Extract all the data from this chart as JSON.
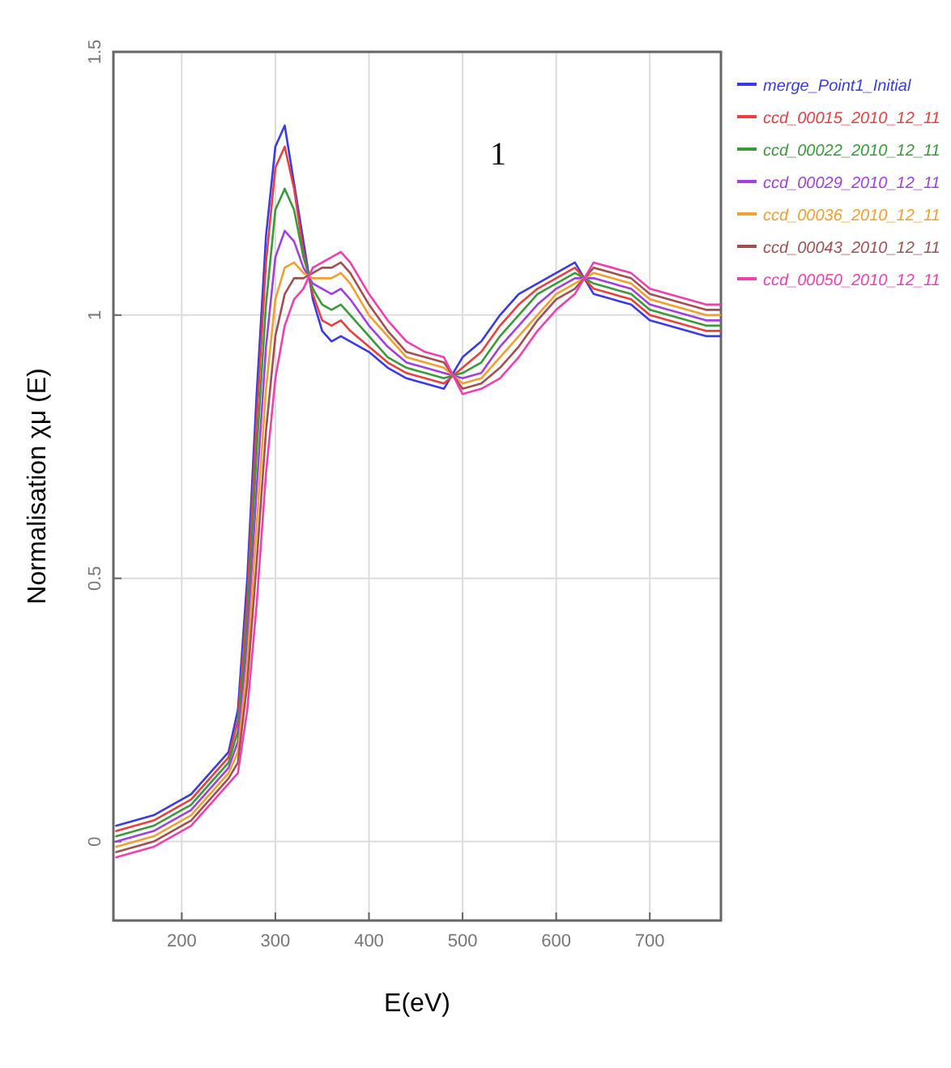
{
  "chart_data": {
    "type": "line",
    "xlabel": "E(eV)",
    "ylabel": "Normalisation χμ (E)",
    "annotations": [
      "1"
    ],
    "xlim": [
      127,
      776
    ],
    "ylim": [
      -0.15,
      1.5
    ],
    "xticks": [
      200,
      300,
      400,
      500,
      600,
      700
    ],
    "yticks": [
      0,
      0.5,
      1,
      1.5
    ],
    "grid": true,
    "legend": "right",
    "marker": "none",
    "line_style": "solid",
    "x": [
      130,
      150,
      170,
      190,
      210,
      230,
      250,
      260,
      270,
      280,
      290,
      300,
      310,
      320,
      330,
      340,
      350,
      360,
      370,
      380,
      400,
      420,
      440,
      460,
      480,
      500,
      520,
      540,
      560,
      580,
      600,
      620,
      640,
      660,
      680,
      700,
      720,
      740,
      760,
      775
    ],
    "series": [
      {
        "name": "merge_Point1_Initial",
        "color": "#3a3ae8",
        "values": [
          0.03,
          0.04,
          0.05,
          0.07,
          0.09,
          0.13,
          0.17,
          0.25,
          0.5,
          0.85,
          1.15,
          1.32,
          1.36,
          1.25,
          1.14,
          1.03,
          0.97,
          0.95,
          0.96,
          0.95,
          0.93,
          0.9,
          0.88,
          0.87,
          0.86,
          0.92,
          0.95,
          1.0,
          1.04,
          1.06,
          1.08,
          1.1,
          1.04,
          1.03,
          1.02,
          0.99,
          0.98,
          0.97,
          0.96,
          0.96
        ]
      },
      {
        "name": "ccd_00015_2010_12_11",
        "color": "#e84040",
        "values": [
          0.02,
          0.03,
          0.04,
          0.06,
          0.08,
          0.12,
          0.16,
          0.23,
          0.46,
          0.8,
          1.1,
          1.28,
          1.32,
          1.24,
          1.12,
          1.04,
          0.99,
          0.98,
          0.99,
          0.97,
          0.94,
          0.91,
          0.89,
          0.88,
          0.87,
          0.9,
          0.93,
          0.98,
          1.02,
          1.05,
          1.07,
          1.09,
          1.05,
          1.04,
          1.03,
          1.0,
          0.99,
          0.98,
          0.97,
          0.97
        ]
      },
      {
        "name": "ccd_00022_2010_12_11",
        "color": "#3a9a3a",
        "values": [
          0.01,
          0.02,
          0.03,
          0.05,
          0.07,
          0.11,
          0.15,
          0.21,
          0.42,
          0.74,
          1.02,
          1.2,
          1.24,
          1.2,
          1.11,
          1.05,
          1.02,
          1.01,
          1.02,
          1.0,
          0.96,
          0.92,
          0.9,
          0.89,
          0.88,
          0.89,
          0.91,
          0.96,
          1.0,
          1.04,
          1.06,
          1.08,
          1.06,
          1.05,
          1.04,
          1.01,
          1.0,
          0.99,
          0.98,
          0.98
        ]
      },
      {
        "name": "ccd_00029_2010_12_11",
        "color": "#a040e0",
        "values": [
          0,
          0.01,
          0.02,
          0.04,
          0.06,
          0.1,
          0.14,
          0.19,
          0.38,
          0.67,
          0.94,
          1.11,
          1.16,
          1.14,
          1.09,
          1.06,
          1.05,
          1.04,
          1.05,
          1.03,
          0.98,
          0.94,
          0.91,
          0.9,
          0.89,
          0.88,
          0.89,
          0.94,
          0.98,
          1.02,
          1.05,
          1.07,
          1.07,
          1.06,
          1.05,
          1.02,
          1.01,
          1.0,
          0.99,
          0.99
        ]
      },
      {
        "name": "ccd_00036_2010_12_11",
        "color": "#f0a030",
        "values": [
          -0.01,
          0,
          0.01,
          0.03,
          0.05,
          0.09,
          0.13,
          0.17,
          0.34,
          0.6,
          0.86,
          1.03,
          1.09,
          1.1,
          1.08,
          1.07,
          1.07,
          1.07,
          1.08,
          1.06,
          1.0,
          0.96,
          0.92,
          0.91,
          0.9,
          0.87,
          0.88,
          0.92,
          0.96,
          1.0,
          1.04,
          1.06,
          1.08,
          1.07,
          1.06,
          1.03,
          1.02,
          1.01,
          1.0,
          1.0
        ]
      },
      {
        "name": "ccd_00043_2010_12_11",
        "color": "#a05050",
        "values": [
          -0.02,
          -0.01,
          0,
          0.02,
          0.04,
          0.08,
          0.12,
          0.15,
          0.3,
          0.53,
          0.78,
          0.96,
          1.04,
          1.07,
          1.07,
          1.08,
          1.09,
          1.09,
          1.1,
          1.08,
          1.02,
          0.97,
          0.93,
          0.92,
          0.91,
          0.86,
          0.87,
          0.9,
          0.94,
          0.99,
          1.03,
          1.05,
          1.09,
          1.08,
          1.07,
          1.04,
          1.03,
          1.02,
          1.01,
          1.01
        ]
      },
      {
        "name": "ccd_00050_2010_12_11",
        "color": "#f040b0",
        "values": [
          -0.03,
          -0.02,
          -0.01,
          0.01,
          0.03,
          0.07,
          0.11,
          0.13,
          0.25,
          0.45,
          0.7,
          0.88,
          0.98,
          1.03,
          1.05,
          1.09,
          1.1,
          1.11,
          1.12,
          1.1,
          1.04,
          0.99,
          0.95,
          0.93,
          0.92,
          0.85,
          0.86,
          0.88,
          0.92,
          0.97,
          1.01,
          1.04,
          1.1,
          1.09,
          1.08,
          1.05,
          1.04,
          1.03,
          1.02,
          1.02
        ]
      }
    ]
  }
}
